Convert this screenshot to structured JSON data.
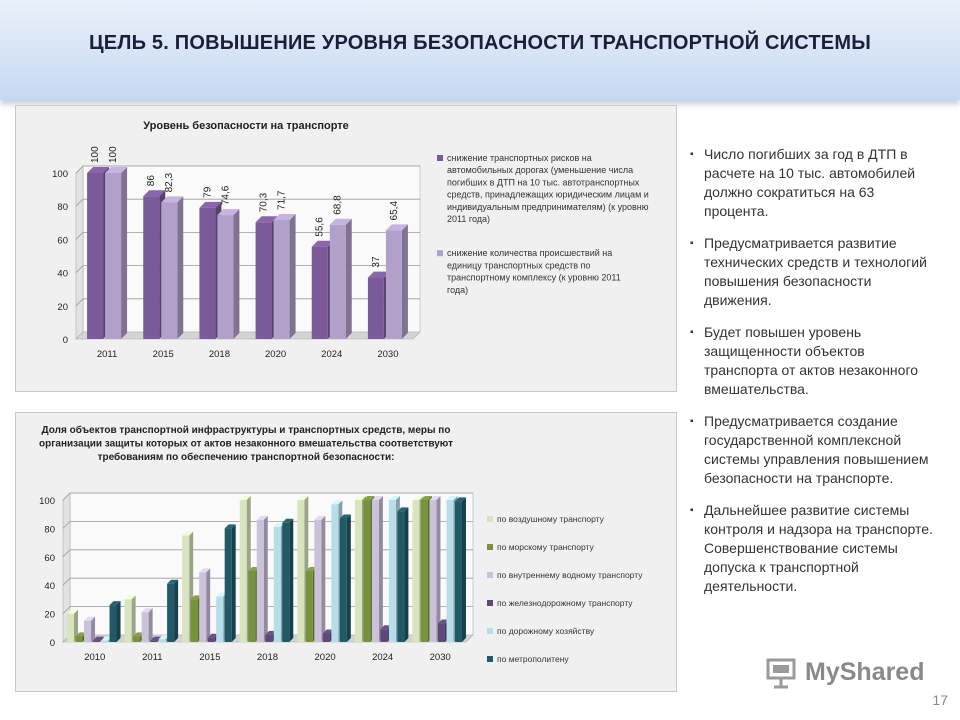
{
  "header": {
    "title": "ЦЕЛЬ 5. ПОВЫШЕНИЕ УРОВНЯ БЕЗОПАСНОСТИ ТРАНСПОРТНОЙ СИСТЕМЫ"
  },
  "chart_data": [
    {
      "type": "bar",
      "title": "Уровень безопасности на транспорте",
      "categories": [
        "2011",
        "2015",
        "2018",
        "2020",
        "2024",
        "2030"
      ],
      "ylim": [
        0,
        100
      ],
      "yticks": [
        "0",
        "20",
        "40",
        "60",
        "80",
        "100"
      ],
      "grid": true,
      "legend_position": "right",
      "series": [
        {
          "name": "снижение транспортных рисков на автомобильных дорогах (уменьшение числа погибших в ДТП на 10 тыс. автотранспортных средств, принадлежащих юридическим лицам и индивидуальным предпринимателям) (к уровню 2011 года)",
          "values": [
            100,
            86,
            79,
            70.3,
            55.6,
            37
          ],
          "labels": [
            "100",
            "86",
            "79",
            "70,3",
            "55,6",
            "37"
          ],
          "color": "#7a5a98"
        },
        {
          "name": "снижение количества происшествий на единицу транспортных средств по транспортному комплексу (к уровню 2011 года)",
          "values": [
            100,
            82.3,
            74.6,
            71.7,
            68.8,
            65.4
          ],
          "labels": [
            "100",
            "82,3",
            "74,6",
            "71,7",
            "68,8",
            "65,4"
          ],
          "color": "#b1a0c9"
        }
      ]
    },
    {
      "type": "bar",
      "title": "Доля объектов транспортной инфраструктуры и транспортных средств, меры по организации защиты которых от актов незаконного вмешательства соответствуют требованиям по обеспечению транспортной безопасности:",
      "categories": [
        "2010",
        "2011",
        "2015",
        "2018",
        "2020",
        "2024",
        "2030"
      ],
      "ylim": [
        0,
        100
      ],
      "yticks": [
        "0",
        "20",
        "40",
        "60",
        "80",
        "100"
      ],
      "grid": true,
      "legend_position": "right",
      "series": [
        {
          "name": "по воздушному транспорту",
          "values": [
            20,
            30,
            75,
            100,
            100,
            100,
            100
          ],
          "color": "#d7e4bd"
        },
        {
          "name": "по морскому транспорту",
          "values": [
            4,
            4,
            30,
            50,
            50,
            100,
            100
          ],
          "color": "#76923c"
        },
        {
          "name": "по внутреннему водному транспорту",
          "values": [
            15,
            21,
            49,
            86,
            86,
            100,
            100
          ],
          "color": "#ccc1da"
        },
        {
          "name": "по железнодорожному транспорту",
          "values": [
            1,
            1,
            3,
            5,
            6,
            9,
            13
          ],
          "color": "#5f497a"
        },
        {
          "name": "по дорожному хозяйству",
          "values": [
            1,
            2,
            32,
            81,
            97,
            100,
            100
          ],
          "color": "#b7dee8"
        },
        {
          "name": "по метрополитену",
          "values": [
            26,
            41,
            80,
            84,
            87,
            92,
            99
          ],
          "color": "#215967"
        }
      ]
    }
  ],
  "bullets": [
    "Число погибших за год в ДТП в расчете на 10 тыс. автомобилей должно сократиться на 63 процента.",
    "Предусматривается развитие технических средств и технологий повышения безопасности движения.",
    "Будет повышен уровень защищенности объектов транспорта от актов незаконного вмешательства.",
    "Предусматривается создание государственной комплексной системы управления повышением безопасности на транспорте.",
    "Дальнейшее развитие системы контроля и надзора на транспорте. Совершенствование системы допуска к транспортной деятельности."
  ],
  "bullet_marker": "▪",
  "watermark": {
    "text": "MyShared",
    "icon": "presentation-board-icon"
  },
  "page_number": "17"
}
